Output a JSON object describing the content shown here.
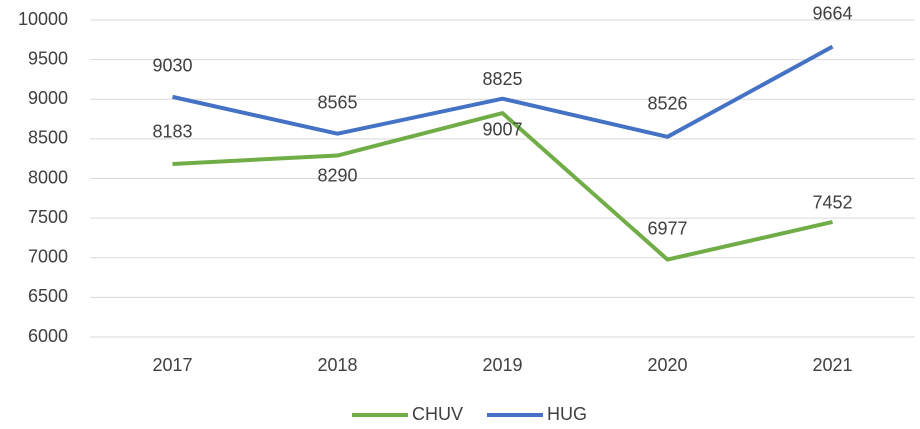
{
  "chart_data": {
    "type": "line",
    "categories": [
      "2017",
      "2018",
      "2019",
      "2020",
      "2021"
    ],
    "series": [
      {
        "name": "CHUV",
        "color": "#70ad47",
        "values": [
          8183,
          8290,
          8825,
          6977,
          7452
        ]
      },
      {
        "name": "HUG",
        "color": "#4472c4",
        "values": [
          9030,
          8565,
          9007,
          8526,
          9664
        ]
      }
    ],
    "ylim": [
      6000,
      10000
    ],
    "yticks": [
      6000,
      6500,
      7000,
      7500,
      8000,
      8500,
      9000,
      9500,
      10000
    ],
    "grid": true,
    "legend": "bottom"
  }
}
